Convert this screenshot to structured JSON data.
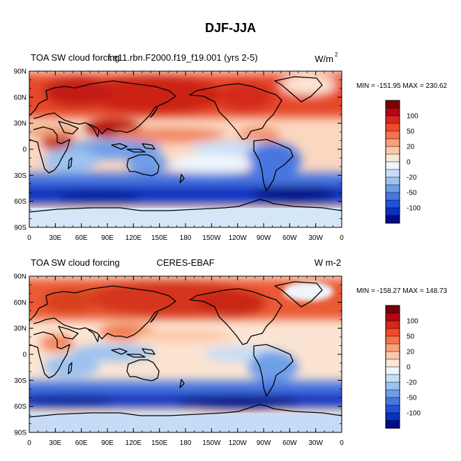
{
  "title": "DJF-JJA",
  "panels": [
    {
      "left_title": "TOA SW cloud forcing",
      "center_title": "f.e11.rbn.F2000.f19_f19.001 (yrs 2-5)",
      "units": "W/m",
      "units_superscript": "2",
      "stats": "MIN = -151.95 MAX = 230.62",
      "lat_labels": [
        "90N",
        "60N",
        "30N",
        "0",
        "30S",
        "60S",
        "90S"
      ],
      "lon_labels": [
        "0",
        "30E",
        "60E",
        "90E",
        "120E",
        "150E",
        "180",
        "150W",
        "120W",
        "90W",
        "60W",
        "30W",
        "0"
      ],
      "colorbar_labels": [
        "100",
        "50",
        "20",
        "0",
        "-20",
        "-50",
        "-100"
      ]
    },
    {
      "left_title": "TOA SW cloud forcing",
      "center_title": "CERES-EBAF",
      "units": "W m-2",
      "units_superscript": "",
      "stats": "MIN = -158.27 MAX = 148.73",
      "lat_labels": [
        "90N",
        "60N",
        "30N",
        "0",
        "30S",
        "60S",
        "90S"
      ],
      "lon_labels": [
        "0",
        "30E",
        "60E",
        "90E",
        "120E",
        "150E",
        "180",
        "150W",
        "120W",
        "90W",
        "60W",
        "30W",
        "0"
      ],
      "colorbar_labels": [
        "100",
        "50",
        "20",
        "0",
        "-20",
        "-50",
        "-100"
      ]
    }
  ],
  "colorbar_colors": [
    "#7a0008",
    "#b00814",
    "#d7261c",
    "#ef4b2a",
    "#f5744c",
    "#f9a07a",
    "#fbc9aa",
    "#fde6d6",
    "#eef6fc",
    "#c8def8",
    "#9cc2f0",
    "#6e9ee8",
    "#4676e0",
    "#2051d6",
    "#0a30c0",
    "#000d86"
  ]
}
